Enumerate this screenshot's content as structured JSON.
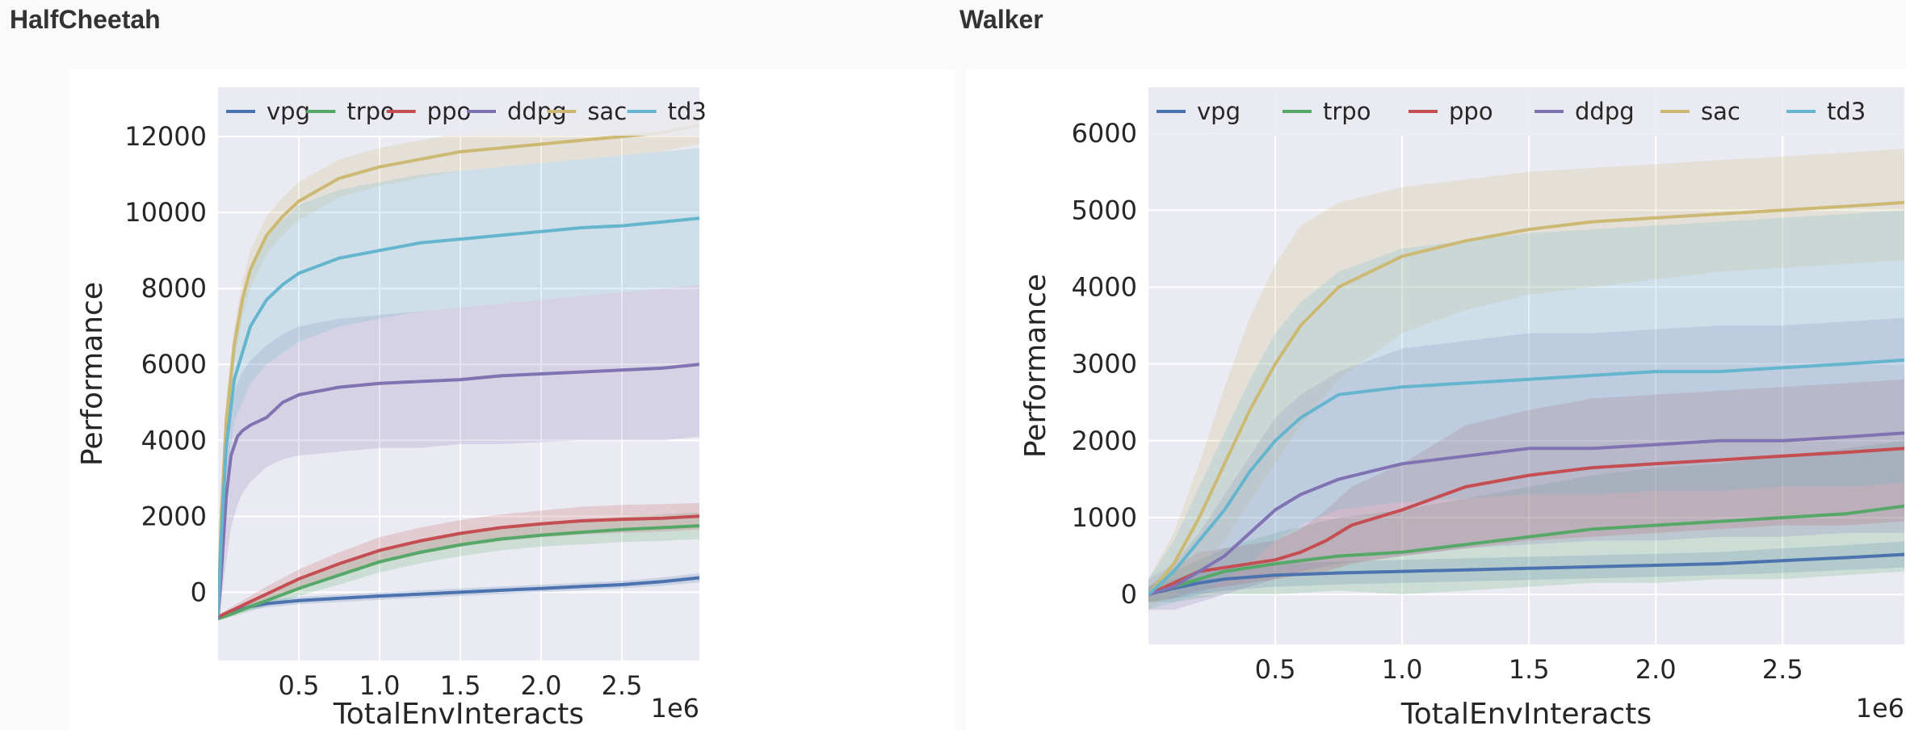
{
  "page": {
    "left_title": "HalfCheetah",
    "right_title": "Walker"
  },
  "colors": {
    "vpg": "#4c72b0",
    "trpo": "#55a868",
    "ppo": "#c44e52",
    "ddpg": "#8172b2",
    "sac": "#ccb974",
    "td3": "#64b5cd",
    "plot_bg": "#eaeaf2",
    "grid": "#ffffff"
  },
  "chart_data": [
    {
      "id": "halfcheetah",
      "type": "line",
      "title": "HalfCheetah",
      "xlabel": "TotalEnvInteracts",
      "ylabel": "Performance",
      "x_scale_label": "1e6",
      "xlim": [
        0,
        2.98
      ],
      "ylim": [
        -1800,
        13300
      ],
      "xticks": [
        0.5,
        1.0,
        1.5,
        2.0,
        2.5
      ],
      "xtick_labels": [
        "0.5",
        "1.0",
        "1.5",
        "2.0",
        "2.5"
      ],
      "yticks": [
        0,
        2000,
        4000,
        6000,
        8000,
        10000,
        12000
      ],
      "ytick_labels": [
        "0",
        "2000",
        "4000",
        "6000",
        "8000",
        "10000",
        "12000"
      ],
      "legend_position": "top",
      "series": [
        {
          "name": "vpg",
          "x": [
            0,
            0.1,
            0.2,
            0.3,
            0.5,
            0.75,
            1.0,
            1.25,
            1.5,
            1.75,
            2.0,
            2.25,
            2.5,
            2.75,
            2.98
          ],
          "mean": [
            -650,
            -500,
            -380,
            -300,
            -220,
            -160,
            -100,
            -50,
            0,
            50,
            100,
            150,
            200,
            280,
            380
          ],
          "lower": [
            -700,
            -580,
            -470,
            -400,
            -320,
            -260,
            -200,
            -150,
            -100,
            -50,
            0,
            50,
            100,
            170,
            260
          ],
          "upper": [
            -600,
            -420,
            -290,
            -200,
            -120,
            -60,
            0,
            50,
            100,
            150,
            200,
            250,
            300,
            390,
            500
          ]
        },
        {
          "name": "trpo",
          "x": [
            0,
            0.1,
            0.2,
            0.3,
            0.5,
            0.75,
            1.0,
            1.25,
            1.5,
            1.75,
            2.0,
            2.25,
            2.5,
            2.75,
            2.98
          ],
          "mean": [
            -700,
            -550,
            -380,
            -220,
            100,
            450,
            800,
            1050,
            1250,
            1400,
            1500,
            1580,
            1650,
            1700,
            1750
          ],
          "lower": [
            -750,
            -630,
            -500,
            -360,
            -100,
            200,
            520,
            760,
            950,
            1100,
            1200,
            1260,
            1320,
            1350,
            1400
          ],
          "upper": [
            -650,
            -470,
            -260,
            -80,
            300,
            700,
            1080,
            1340,
            1550,
            1700,
            1800,
            1900,
            1980,
            2050,
            2100
          ]
        },
        {
          "name": "ppo",
          "x": [
            0,
            0.1,
            0.2,
            0.3,
            0.5,
            0.75,
            1.0,
            1.25,
            1.5,
            1.75,
            2.0,
            2.25,
            2.5,
            2.75,
            2.98
          ],
          "mean": [
            -650,
            -450,
            -250,
            -50,
            350,
            750,
            1100,
            1350,
            1550,
            1700,
            1800,
            1880,
            1920,
            1950,
            2000
          ],
          "lower": [
            -700,
            -550,
            -400,
            -250,
            100,
            450,
            750,
            1000,
            1200,
            1350,
            1450,
            1520,
            1560,
            1600,
            1650
          ],
          "upper": [
            -600,
            -350,
            -100,
            150,
            600,
            1050,
            1450,
            1700,
            1900,
            2050,
            2150,
            2250,
            2300,
            2320,
            2350
          ]
        },
        {
          "name": "ddpg",
          "x": [
            0,
            0.02,
            0.05,
            0.08,
            0.12,
            0.15,
            0.2,
            0.3,
            0.4,
            0.5,
            0.75,
            1.0,
            1.25,
            1.5,
            1.75,
            2.0,
            2.25,
            2.5,
            2.75,
            2.98
          ],
          "mean": [
            -700,
            500,
            2500,
            3600,
            4100,
            4250,
            4400,
            4600,
            5000,
            5200,
            5400,
            5500,
            5550,
            5600,
            5700,
            5750,
            5800,
            5850,
            5900,
            6000
          ],
          "lower": [
            -800,
            -200,
            800,
            1700,
            2300,
            2600,
            2900,
            3300,
            3500,
            3600,
            3700,
            3800,
            3800,
            3900,
            3900,
            3950,
            4000,
            4000,
            4000,
            4100
          ],
          "upper": [
            -600,
            1500,
            3900,
            4900,
            5500,
            5800,
            6100,
            6500,
            6800,
            7000,
            7200,
            7300,
            7400,
            7500,
            7600,
            7700,
            7800,
            7900,
            8000,
            8100
          ]
        },
        {
          "name": "sac",
          "x": [
            0,
            0.02,
            0.05,
            0.1,
            0.15,
            0.2,
            0.3,
            0.4,
            0.5,
            0.75,
            1.0,
            1.25,
            1.5,
            1.75,
            2.0,
            2.25,
            2.5,
            2.75,
            2.98
          ],
          "mean": [
            -600,
            2000,
            4500,
            6500,
            7700,
            8500,
            9400,
            9900,
            10300,
            10900,
            11200,
            11400,
            11600,
            11700,
            11800,
            11900,
            12000,
            12100,
            12300
          ],
          "lower": [
            -700,
            1500,
            4000,
            6000,
            7200,
            8000,
            8900,
            9400,
            9800,
            10400,
            10700,
            10900,
            11100,
            11200,
            11300,
            11400,
            11500,
            11600,
            11800
          ],
          "upper": [
            -500,
            2500,
            5000,
            7000,
            8200,
            9000,
            9900,
            10400,
            10800,
            11400,
            11700,
            11900,
            12100,
            12200,
            12300,
            12400,
            12500,
            12600,
            12800
          ]
        },
        {
          "name": "td3",
          "x": [
            0,
            0.02,
            0.05,
            0.1,
            0.15,
            0.2,
            0.3,
            0.4,
            0.5,
            0.75,
            1.0,
            1.25,
            1.5,
            1.75,
            2.0,
            2.25,
            2.5,
            2.75,
            2.98
          ],
          "mean": [
            -600,
            1500,
            3800,
            5600,
            6300,
            7000,
            7700,
            8100,
            8400,
            8800,
            9000,
            9200,
            9300,
            9400,
            9500,
            9600,
            9650,
            9750,
            9850
          ],
          "lower": [
            -700,
            1000,
            3000,
            4500,
            5000,
            5500,
            6000,
            6300,
            6600,
            7000,
            7200,
            7400,
            7500,
            7600,
            7700,
            7800,
            7900,
            8000,
            8100
          ],
          "upper": [
            -500,
            2200,
            4800,
            6800,
            7800,
            8600,
            9400,
            9800,
            10200,
            10600,
            10800,
            11000,
            11100,
            11200,
            11300,
            11400,
            11500,
            11600,
            11700
          ]
        }
      ]
    },
    {
      "id": "walker",
      "type": "line",
      "title": "Walker",
      "xlabel": "TotalEnvInteracts",
      "ylabel": "Performance",
      "x_scale_label": "1e6",
      "xlim": [
        0,
        2.98
      ],
      "ylim": [
        -650,
        6600
      ],
      "xticks": [
        0.5,
        1.0,
        1.5,
        2.0,
        2.5
      ],
      "xtick_labels": [
        "0.5",
        "1.0",
        "1.5",
        "2.0",
        "2.5"
      ],
      "yticks": [
        0,
        1000,
        2000,
        3000,
        4000,
        5000,
        6000
      ],
      "ytick_labels": [
        "0",
        "1000",
        "2000",
        "3000",
        "4000",
        "5000",
        "6000"
      ],
      "legend_position": "top",
      "series": [
        {
          "name": "vpg",
          "x": [
            0,
            0.1,
            0.2,
            0.3,
            0.5,
            0.75,
            1.0,
            1.25,
            1.5,
            1.75,
            2.0,
            2.25,
            2.5,
            2.75,
            2.98
          ],
          "mean": [
            0,
            80,
            150,
            200,
            250,
            280,
            300,
            320,
            340,
            360,
            380,
            400,
            440,
            480,
            520
          ],
          "lower": [
            -100,
            -50,
            0,
            50,
            100,
            130,
            150,
            170,
            190,
            210,
            230,
            250,
            280,
            320,
            350
          ],
          "upper": [
            100,
            200,
            300,
            350,
            400,
            430,
            450,
            470,
            490,
            510,
            530,
            550,
            600,
            640,
            690
          ]
        },
        {
          "name": "trpo",
          "x": [
            0,
            0.1,
            0.2,
            0.3,
            0.5,
            0.75,
            1.0,
            1.25,
            1.5,
            1.75,
            2.0,
            2.25,
            2.5,
            2.75,
            2.98
          ],
          "mean": [
            0,
            100,
            200,
            300,
            400,
            500,
            550,
            650,
            750,
            850,
            900,
            950,
            1000,
            1050,
            1150
          ],
          "lower": [
            -100,
            -100,
            -50,
            0,
            0,
            50,
            0,
            50,
            100,
            150,
            150,
            200,
            200,
            250,
            300
          ],
          "upper": [
            100,
            300,
            450,
            600,
            800,
            1000,
            1100,
            1250,
            1400,
            1550,
            1650,
            1700,
            1800,
            1900,
            2000
          ]
        },
        {
          "name": "ppo",
          "x": [
            0,
            0.1,
            0.2,
            0.3,
            0.5,
            0.6,
            0.7,
            0.8,
            1.0,
            1.25,
            1.5,
            1.75,
            2.0,
            2.25,
            2.5,
            2.75,
            2.98
          ],
          "mean": [
            0,
            150,
            300,
            350,
            450,
            550,
            700,
            900,
            1100,
            1400,
            1550,
            1650,
            1700,
            1750,
            1800,
            1850,
            1900
          ],
          "lower": [
            -100,
            -50,
            50,
            100,
            200,
            250,
            300,
            400,
            500,
            600,
            700,
            750,
            800,
            850,
            900,
            900,
            950
          ],
          "upper": [
            100,
            350,
            550,
            600,
            700,
            850,
            1100,
            1400,
            1700,
            2200,
            2400,
            2550,
            2600,
            2650,
            2700,
            2750,
            2800
          ]
        },
        {
          "name": "ddpg",
          "x": [
            0,
            0.1,
            0.2,
            0.3,
            0.4,
            0.5,
            0.6,
            0.75,
            1.0,
            1.25,
            1.5,
            1.75,
            2.0,
            2.25,
            2.5,
            2.75,
            2.98
          ],
          "mean": [
            0,
            100,
            300,
            500,
            800,
            1100,
            1300,
            1500,
            1700,
            1800,
            1900,
            1900,
            1950,
            2000,
            2000,
            2050,
            2100
          ],
          "lower": [
            -200,
            -200,
            -100,
            0,
            100,
            200,
            300,
            400,
            500,
            600,
            650,
            700,
            700,
            750,
            750,
            800,
            800
          ],
          "upper": [
            200,
            400,
            800,
            1300,
            1800,
            2300,
            2600,
            2900,
            3200,
            3300,
            3400,
            3400,
            3450,
            3500,
            3500,
            3550,
            3600
          ]
        },
        {
          "name": "sac",
          "x": [
            0,
            0.1,
            0.2,
            0.3,
            0.4,
            0.5,
            0.6,
            0.75,
            1.0,
            1.25,
            1.5,
            1.75,
            2.0,
            2.25,
            2.5,
            2.75,
            2.98
          ],
          "mean": [
            0,
            400,
            1000,
            1700,
            2400,
            3000,
            3500,
            4000,
            4400,
            4600,
            4750,
            4850,
            4900,
            4950,
            5000,
            5050,
            5100
          ],
          "lower": [
            -200,
            0,
            300,
            700,
            1200,
            1700,
            2200,
            2800,
            3400,
            3700,
            3900,
            4000,
            4100,
            4200,
            4250,
            4300,
            4350
          ],
          "upper": [
            200,
            800,
            1700,
            2700,
            3600,
            4300,
            4800,
            5100,
            5300,
            5400,
            5500,
            5550,
            5600,
            5650,
            5700,
            5750,
            5800
          ]
        },
        {
          "name": "td3",
          "x": [
            0,
            0.1,
            0.2,
            0.3,
            0.4,
            0.5,
            0.6,
            0.75,
            1.0,
            1.25,
            1.5,
            1.75,
            2.0,
            2.25,
            2.5,
            2.75,
            2.98
          ],
          "mean": [
            0,
            300,
            700,
            1100,
            1600,
            2000,
            2300,
            2600,
            2700,
            2750,
            2800,
            2850,
            2900,
            2900,
            2950,
            3000,
            3050
          ],
          "lower": [
            -200,
            -100,
            0,
            200,
            400,
            700,
            900,
            1100,
            1200,
            1250,
            1300,
            1300,
            1350,
            1350,
            1400,
            1400,
            1450
          ],
          "upper": [
            200,
            700,
            1400,
            2100,
            2800,
            3400,
            3800,
            4200,
            4500,
            4600,
            4700,
            4750,
            4800,
            4850,
            4900,
            4950,
            5000
          ]
        }
      ]
    }
  ]
}
